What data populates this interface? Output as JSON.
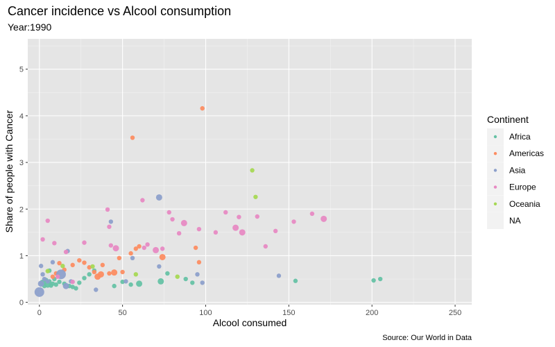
{
  "chart_data": {
    "type": "scatter",
    "title": "Cancer incidence vs Alcool consumption",
    "subtitle": "Year:1990",
    "xlabel": "Alcool consumed",
    "ylabel": "Share of people with Cancer",
    "caption": "Source: Our World in Data",
    "xlim": [
      -7,
      260
    ],
    "ylim": [
      -0.05,
      5.65
    ],
    "x_ticks": [
      0,
      50,
      100,
      150,
      200,
      250
    ],
    "y_ticks": [
      0,
      1,
      2,
      3,
      4,
      5
    ],
    "grid": true,
    "legend": {
      "title": "Continent",
      "placement": "right",
      "entries": [
        {
          "name": "Africa",
          "color": "#66c2a5"
        },
        {
          "name": "Americas",
          "color": "#fc8d62"
        },
        {
          "name": "Asia",
          "color": "#8da0cb"
        },
        {
          "name": "Europe",
          "color": "#e78ac3"
        },
        {
          "name": "Oceania",
          "color": "#a6d854"
        },
        {
          "name": "NA",
          "color": ""
        }
      ]
    },
    "series": [
      {
        "name": "Africa",
        "color": "#66c2a5",
        "points": [
          {
            "x": 2,
            "y": 0.42,
            "s": 3
          },
          {
            "x": 3,
            "y": 0.35,
            "s": 2
          },
          {
            "x": 4,
            "y": 0.48,
            "s": 2
          },
          {
            "x": 5,
            "y": 0.38,
            "s": 3
          },
          {
            "x": 6,
            "y": 0.45,
            "s": 2
          },
          {
            "x": 7,
            "y": 0.36,
            "s": 2
          },
          {
            "x": 8,
            "y": 0.4,
            "s": 2
          },
          {
            "x": 9,
            "y": 0.5,
            "s": 2
          },
          {
            "x": 10,
            "y": 0.38,
            "s": 2
          },
          {
            "x": 12,
            "y": 0.44,
            "s": 2
          },
          {
            "x": 15,
            "y": 0.4,
            "s": 2
          },
          {
            "x": 18,
            "y": 0.35,
            "s": 2
          },
          {
            "x": 20,
            "y": 0.33,
            "s": 2
          },
          {
            "x": 22,
            "y": 0.3,
            "s": 2
          },
          {
            "x": 24,
            "y": 0.42,
            "s": 2
          },
          {
            "x": 27,
            "y": 0.52,
            "s": 2
          },
          {
            "x": 30,
            "y": 0.6,
            "s": 2
          },
          {
            "x": 33,
            "y": 0.68,
            "s": 2
          },
          {
            "x": 45,
            "y": 0.35,
            "s": 2
          },
          {
            "x": 50,
            "y": 0.44,
            "s": 2
          },
          {
            "x": 55,
            "y": 0.38,
            "s": 2
          },
          {
            "x": 60,
            "y": 0.4,
            "s": 3
          },
          {
            "x": 73,
            "y": 0.45,
            "s": 3
          },
          {
            "x": 77,
            "y": 0.62,
            "s": 2
          },
          {
            "x": 88,
            "y": 0.5,
            "s": 2
          },
          {
            "x": 92,
            "y": 0.42,
            "s": 2
          },
          {
            "x": 154,
            "y": 0.46,
            "s": 2
          },
          {
            "x": 201,
            "y": 0.47,
            "s": 2
          },
          {
            "x": 205,
            "y": 0.5,
            "s": 2
          },
          {
            "x": 6,
            "y": 0.68,
            "s": 2
          }
        ]
      },
      {
        "name": "Americas",
        "color": "#fc8d62",
        "points": [
          {
            "x": 8,
            "y": 0.55,
            "s": 2
          },
          {
            "x": 10,
            "y": 0.62,
            "s": 2
          },
          {
            "x": 12,
            "y": 0.84,
            "s": 2
          },
          {
            "x": 15,
            "y": 0.7,
            "s": 2
          },
          {
            "x": 20,
            "y": 0.8,
            "s": 2
          },
          {
            "x": 24,
            "y": 0.9,
            "s": 2
          },
          {
            "x": 27,
            "y": 0.85,
            "s": 2
          },
          {
            "x": 30,
            "y": 0.75,
            "s": 2
          },
          {
            "x": 33,
            "y": 0.65,
            "s": 2
          },
          {
            "x": 35,
            "y": 0.55,
            "s": 3
          },
          {
            "x": 37,
            "y": 0.6,
            "s": 3
          },
          {
            "x": 38,
            "y": 0.8,
            "s": 2
          },
          {
            "x": 42,
            "y": 0.62,
            "s": 2
          },
          {
            "x": 45,
            "y": 0.64,
            "s": 3
          },
          {
            "x": 48,
            "y": 0.95,
            "s": 2
          },
          {
            "x": 50,
            "y": 0.65,
            "s": 2
          },
          {
            "x": 55,
            "y": 1.05,
            "s": 2
          },
          {
            "x": 58,
            "y": 1.15,
            "s": 2
          },
          {
            "x": 60,
            "y": 1.2,
            "s": 2
          },
          {
            "x": 74,
            "y": 0.97,
            "s": 3
          },
          {
            "x": 94,
            "y": 1.17,
            "s": 2
          },
          {
            "x": 96,
            "y": 0.86,
            "s": 2
          },
          {
            "x": 98,
            "y": 4.16,
            "s": 2
          },
          {
            "x": 56,
            "y": 3.53,
            "s": 2
          }
        ]
      },
      {
        "name": "Asia",
        "color": "#8da0cb",
        "points": [
          {
            "x": 0,
            "y": 0.22,
            "s": 4
          },
          {
            "x": 1,
            "y": 0.78,
            "s": 2
          },
          {
            "x": 1,
            "y": 0.4,
            "s": 3
          },
          {
            "x": 2,
            "y": 0.6,
            "s": 2
          },
          {
            "x": 3,
            "y": 0.5,
            "s": 2
          },
          {
            "x": 5,
            "y": 0.45,
            "s": 2
          },
          {
            "x": 8,
            "y": 0.86,
            "s": 2
          },
          {
            "x": 13,
            "y": 0.6,
            "s": 4
          },
          {
            "x": 16,
            "y": 0.35,
            "s": 3
          },
          {
            "x": 17,
            "y": 1.1,
            "s": 2
          },
          {
            "x": 19,
            "y": 0.45,
            "s": 2
          },
          {
            "x": 34,
            "y": 0.27,
            "s": 2
          },
          {
            "x": 43,
            "y": 1.73,
            "s": 2
          },
          {
            "x": 52,
            "y": 0.45,
            "s": 2
          },
          {
            "x": 56,
            "y": 0.95,
            "s": 2
          },
          {
            "x": 72,
            "y": 0.77,
            "s": 2
          },
          {
            "x": 72,
            "y": 2.25,
            "s": 3
          },
          {
            "x": 95,
            "y": 0.6,
            "s": 2
          },
          {
            "x": 98,
            "y": 0.42,
            "s": 2
          },
          {
            "x": 144,
            "y": 0.57,
            "s": 2
          }
        ]
      },
      {
        "name": "Europe",
        "color": "#e78ac3",
        "points": [
          {
            "x": 2,
            "y": 1.35,
            "s": 2
          },
          {
            "x": 5,
            "y": 1.75,
            "s": 2
          },
          {
            "x": 9,
            "y": 1.27,
            "s": 2
          },
          {
            "x": 16,
            "y": 1.08,
            "s": 2
          },
          {
            "x": 27,
            "y": 1.28,
            "s": 2
          },
          {
            "x": 41,
            "y": 1.99,
            "s": 2
          },
          {
            "x": 42,
            "y": 1.62,
            "s": 2
          },
          {
            "x": 43,
            "y": 1.22,
            "s": 2
          },
          {
            "x": 46,
            "y": 1.16,
            "s": 3
          },
          {
            "x": 62,
            "y": 2.19,
            "s": 2
          },
          {
            "x": 63,
            "y": 1.17,
            "s": 2
          },
          {
            "x": 65,
            "y": 1.24,
            "s": 2
          },
          {
            "x": 70,
            "y": 1.12,
            "s": 3
          },
          {
            "x": 74,
            "y": 1.15,
            "s": 2
          },
          {
            "x": 78,
            "y": 1.93,
            "s": 2
          },
          {
            "x": 80,
            "y": 1.78,
            "s": 2
          },
          {
            "x": 84,
            "y": 1.48,
            "s": 2
          },
          {
            "x": 87,
            "y": 1.7,
            "s": 3
          },
          {
            "x": 96,
            "y": 1.57,
            "s": 2
          },
          {
            "x": 106,
            "y": 1.5,
            "s": 2
          },
          {
            "x": 112,
            "y": 1.93,
            "s": 2
          },
          {
            "x": 118,
            "y": 1.6,
            "s": 3
          },
          {
            "x": 120,
            "y": 1.83,
            "s": 2
          },
          {
            "x": 122,
            "y": 1.5,
            "s": 3
          },
          {
            "x": 131,
            "y": 1.84,
            "s": 2
          },
          {
            "x": 136,
            "y": 1.2,
            "s": 2
          },
          {
            "x": 142,
            "y": 1.53,
            "s": 2
          },
          {
            "x": 153,
            "y": 1.73,
            "s": 2
          },
          {
            "x": 164,
            "y": 1.9,
            "s": 2
          },
          {
            "x": 171,
            "y": 1.79,
            "s": 3
          },
          {
            "x": 11,
            "y": 0.55,
            "s": 2
          },
          {
            "x": 20,
            "y": 0.44,
            "s": 2
          }
        ]
      },
      {
        "name": "Oceania",
        "color": "#a6d854",
        "points": [
          {
            "x": 5,
            "y": 0.67,
            "s": 2
          },
          {
            "x": 14,
            "y": 0.78,
            "s": 2
          },
          {
            "x": 32,
            "y": 0.77,
            "s": 2
          },
          {
            "x": 58,
            "y": 0.6,
            "s": 2
          },
          {
            "x": 83,
            "y": 0.55,
            "s": 2
          },
          {
            "x": 128,
            "y": 2.83,
            "s": 2
          },
          {
            "x": 130,
            "y": 2.26,
            "s": 2
          }
        ]
      }
    ]
  }
}
